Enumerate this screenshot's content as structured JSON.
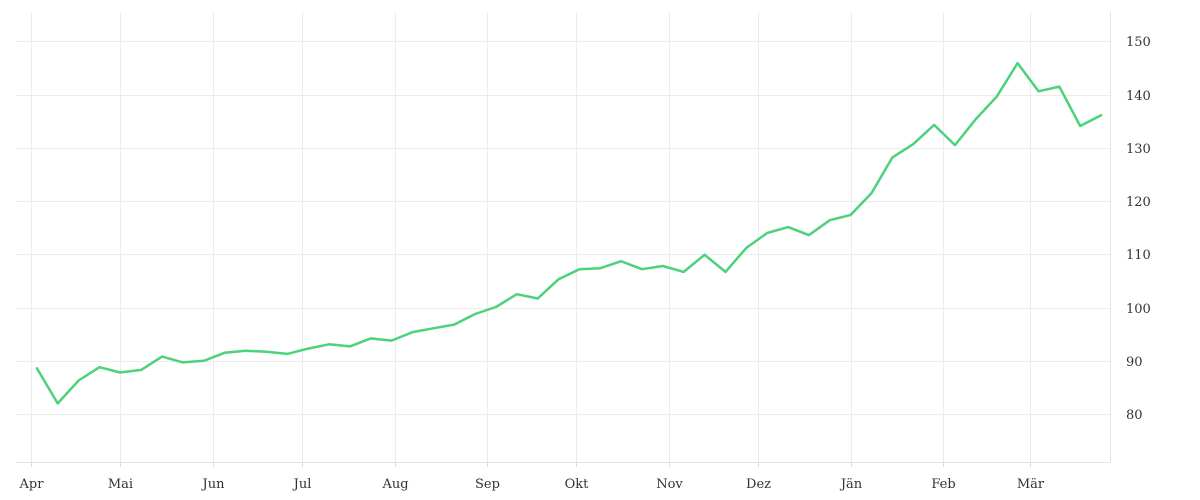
{
  "chart_data": {
    "type": "line",
    "title": "",
    "xlabel": "",
    "ylabel": "",
    "x_ticks": [
      {
        "label": "Apr",
        "date": "2023-04-01"
      },
      {
        "label": "Mai",
        "date": "2023-05-01"
      },
      {
        "label": "Jun",
        "date": "2023-06-01"
      },
      {
        "label": "Jul",
        "date": "2023-07-01"
      },
      {
        "label": "Aug",
        "date": "2023-08-01"
      },
      {
        "label": "Sep",
        "date": "2023-09-01"
      },
      {
        "label": "Okt",
        "date": "2023-10-01"
      },
      {
        "label": "Nov",
        "date": "2023-11-01"
      },
      {
        "label": "Dez",
        "date": "2023-12-01"
      },
      {
        "label": "Jän",
        "date": "2024-01-01"
      },
      {
        "label": "Feb",
        "date": "2024-02-01"
      },
      {
        "label": "Mär",
        "date": "2024-03-01"
      }
    ],
    "xlim": [
      "2023-03-27",
      "2024-03-28"
    ],
    "y_ticks": [
      80,
      90,
      100,
      110,
      120,
      130,
      140,
      150
    ],
    "ylim": [
      71,
      155.5
    ],
    "y_axis_position": "right",
    "grid": true,
    "legend": false,
    "colors": {
      "series": "#4cd27a",
      "grid": "#ececec"
    },
    "series": [
      {
        "x": [
          "2023-04-03",
          "2023-04-10",
          "2023-04-17",
          "2023-04-24",
          "2023-05-01",
          "2023-05-08",
          "2023-05-15",
          "2023-05-22",
          "2023-05-29",
          "2023-06-05",
          "2023-06-12",
          "2023-06-19",
          "2023-06-26",
          "2023-07-03",
          "2023-07-10",
          "2023-07-17",
          "2023-07-24",
          "2023-07-31",
          "2023-08-07",
          "2023-08-14",
          "2023-08-21",
          "2023-08-28",
          "2023-09-04",
          "2023-09-11",
          "2023-09-18",
          "2023-09-25",
          "2023-10-02",
          "2023-10-09",
          "2023-10-16",
          "2023-10-23",
          "2023-10-30",
          "2023-11-06",
          "2023-11-13",
          "2023-11-20",
          "2023-11-27",
          "2023-12-04",
          "2023-12-11",
          "2023-12-18",
          "2023-12-25",
          "2024-01-01",
          "2024-01-08",
          "2024-01-15",
          "2024-01-22",
          "2024-01-29",
          "2024-02-05",
          "2024-02-12",
          "2024-02-19",
          "2024-02-26",
          "2024-03-04",
          "2024-03-11",
          "2024-03-18",
          "2024-03-25"
        ],
        "y": [
          88.6,
          82.0,
          86.3,
          88.8,
          87.8,
          88.3,
          90.8,
          89.7,
          90.0,
          91.5,
          91.9,
          91.7,
          91.3,
          92.3,
          93.1,
          92.7,
          94.2,
          93.8,
          95.4,
          96.1,
          96.8,
          98.8,
          100.1,
          102.5,
          101.7,
          105.3,
          107.2,
          107.4,
          108.7,
          107.2,
          107.8,
          106.7,
          109.9,
          106.7,
          111.2,
          114.0,
          115.1,
          113.6,
          116.4,
          117.4,
          121.5,
          128.2,
          130.7,
          134.3,
          130.5,
          135.4,
          139.6,
          145.9,
          140.6,
          141.5,
          134.1,
          136.1
        ]
      }
    ]
  }
}
